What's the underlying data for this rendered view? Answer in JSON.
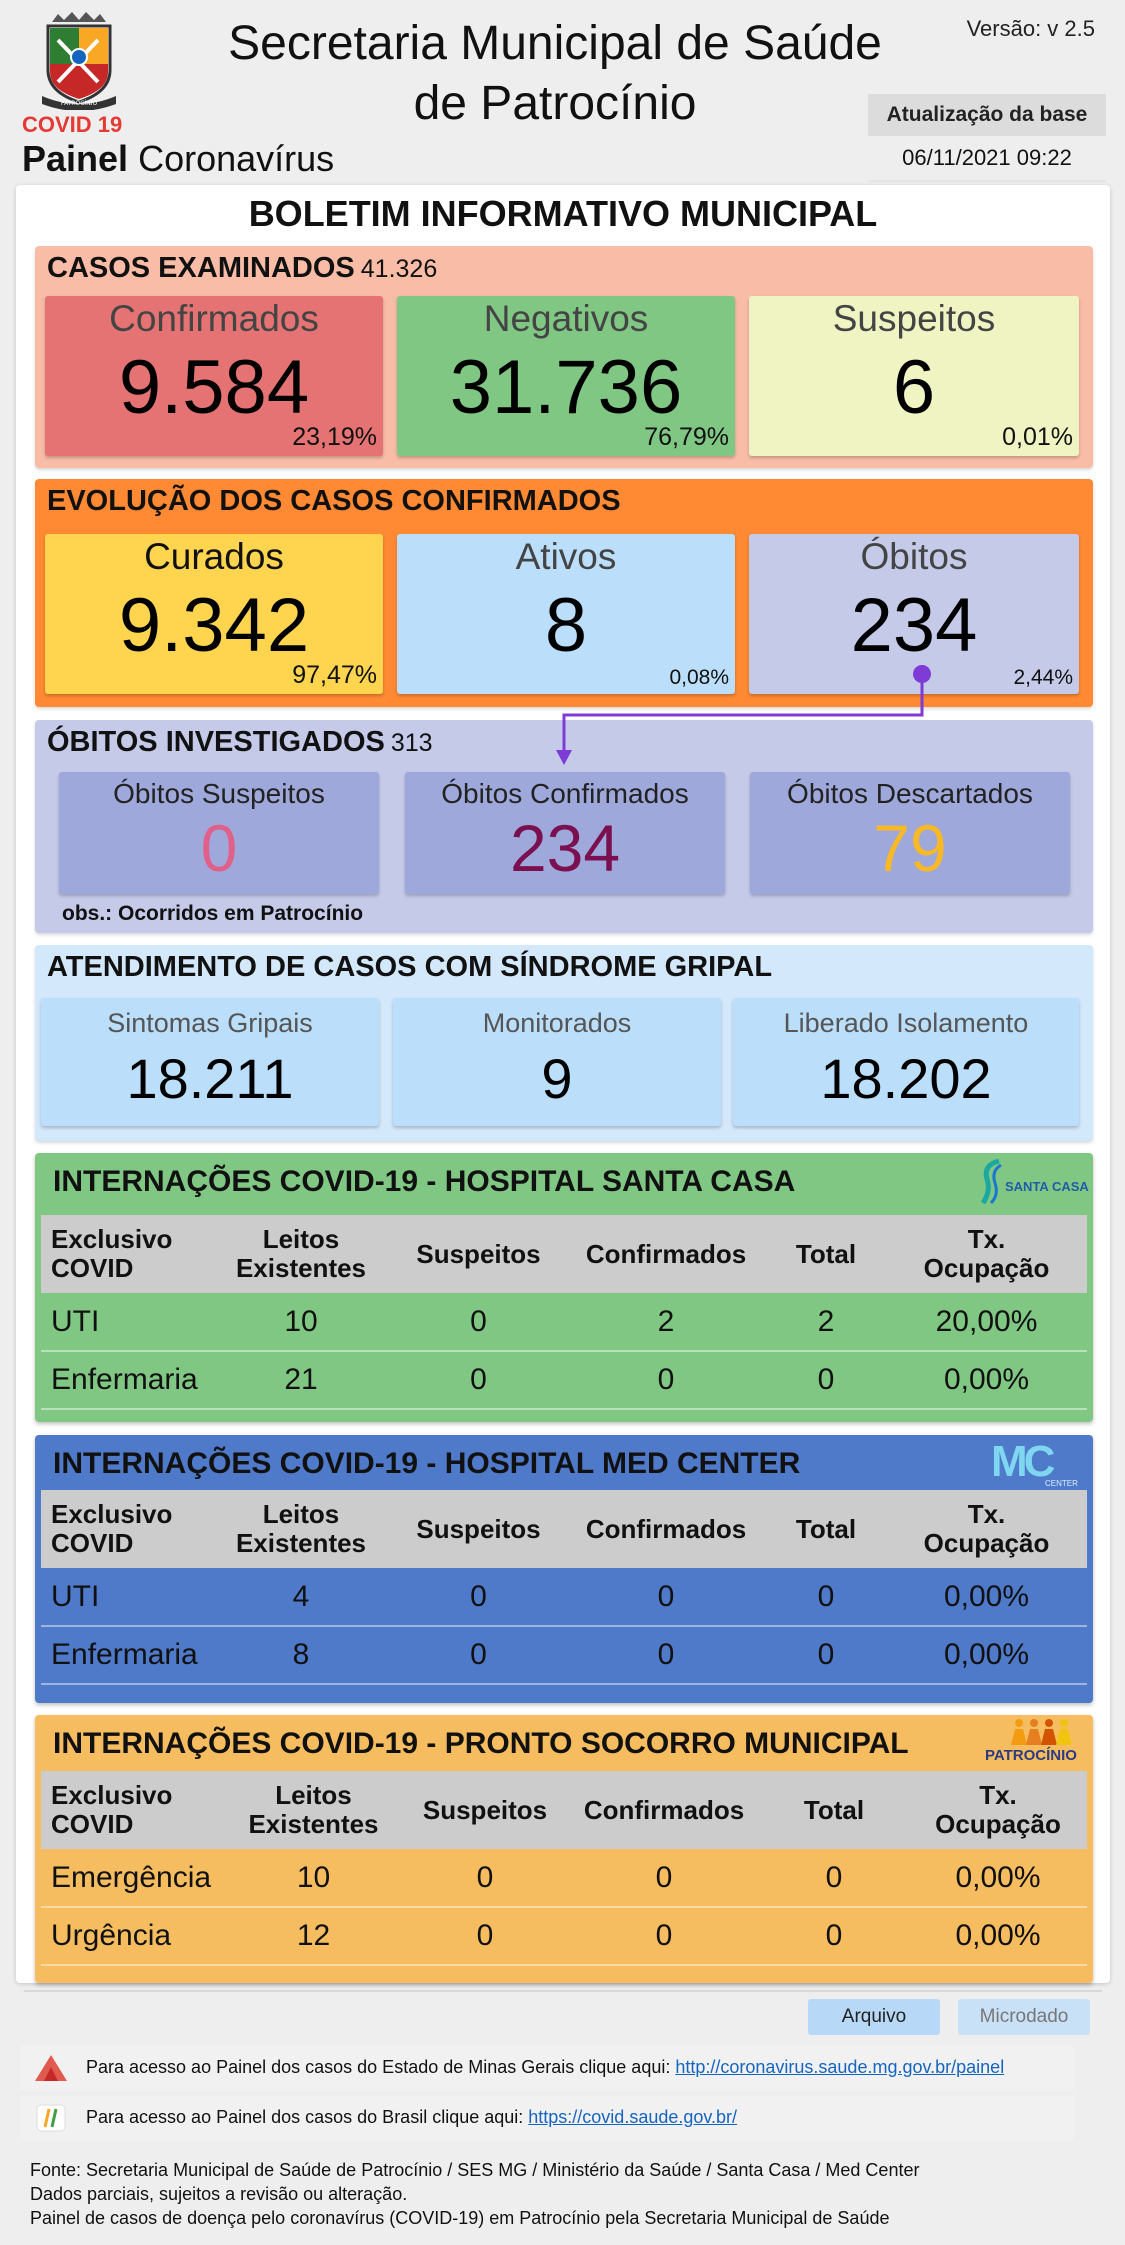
{
  "header": {
    "logo_text": "PATROCÍNIO",
    "covid_label": "COVID 19",
    "painel_bold": "Painel",
    "painel_rest": " Coronavírus",
    "title_line1": "Secretaria Municipal de Saúde",
    "title_line2": "de Patrocínio",
    "version": "Versão: v 2.5",
    "update_label": "Atualização da base",
    "update_date": "06/11/2021 09:22"
  },
  "bulletin_title": "BOLETIM INFORMATIVO MUNICIPAL",
  "casos_examinados": {
    "title": "CASOS EXAMINADOS",
    "total": "41.326",
    "confirmados": {
      "label": "Confirmados",
      "value": "9.584",
      "pct": "23,19%"
    },
    "negativos": {
      "label": "Negativos",
      "value": "31.736",
      "pct": "76,79%"
    },
    "suspeitos": {
      "label": "Suspeitos",
      "value": "6",
      "pct": "0,01%"
    }
  },
  "evolucao": {
    "title": "EVOLUÇÃO DOS CASOS CONFIRMADOS",
    "curados": {
      "label": "Curados",
      "value": "9.342",
      "pct": "97,47%"
    },
    "ativos": {
      "label": "Ativos",
      "value": "8",
      "pct": "0,08%"
    },
    "obitos": {
      "label": "Óbitos",
      "value": "234",
      "pct": "2,44%"
    }
  },
  "obitos_investigados": {
    "title": "ÓBITOS INVESTIGADOS",
    "total": "313",
    "suspeitos": {
      "label": "Óbitos Suspeitos",
      "value": "0"
    },
    "confirmados": {
      "label": "Óbitos Confirmados",
      "value": "234"
    },
    "descartados": {
      "label": "Óbitos Descartados",
      "value": "79"
    },
    "obs": "obs.: Ocorridos em Patrocínio"
  },
  "sindrome_gripal": {
    "title": "ATENDIMENTO DE CASOS COM SÍNDROME GRIPAL",
    "sintomas": {
      "label": "Sintomas Gripais",
      "value": "18.211"
    },
    "monitorados": {
      "label": "Monitorados",
      "value": "9"
    },
    "liberado": {
      "label": "Liberado Isolamento",
      "value": "18.202"
    }
  },
  "table_headers": {
    "c1a": "Exclusivo",
    "c1b": "COVID",
    "c2a": "Leitos",
    "c2b": "Existentes",
    "c3": "Suspeitos",
    "c4": "Confirmados",
    "c5": "Total",
    "c6a": "Tx.",
    "c6b": "Ocupação"
  },
  "santa_casa": {
    "title": "INTERNAÇÕES COVID-19 - HOSPITAL SANTA CASA",
    "logo_text": "SANTA CASA",
    "rows": [
      {
        "tipo": "UTI",
        "leitos": "10",
        "suspeitos": "0",
        "confirmados": "2",
        "total": "2",
        "taxa": "20,00%"
      },
      {
        "tipo": "Enfermaria",
        "leitos": "21",
        "suspeitos": "0",
        "confirmados": "0",
        "total": "0",
        "taxa": "0,00%"
      }
    ]
  },
  "med_center": {
    "title": "INTERNAÇÕES COVID-19 - HOSPITAL MED CENTER",
    "logo_text": "MC",
    "logo_sub": "CENTER",
    "rows": [
      {
        "tipo": "UTI",
        "leitos": "4",
        "suspeitos": "0",
        "confirmados": "0",
        "total": "0",
        "taxa": "0,00%"
      },
      {
        "tipo": "Enfermaria",
        "leitos": "8",
        "suspeitos": "0",
        "confirmados": "0",
        "total": "0",
        "taxa": "0,00%"
      }
    ]
  },
  "pronto_socorro": {
    "title": "INTERNAÇÕES COVID-19 - PRONTO SOCORRO MUNICIPAL",
    "logo_text": "PATROCÍNIO",
    "rows": [
      {
        "tipo": "Emergência",
        "leitos": "10",
        "suspeitos": "0",
        "confirmados": "0",
        "total": "0",
        "taxa": "0,00%"
      },
      {
        "tipo": "Urgência",
        "leitos": "12",
        "suspeitos": "0",
        "confirmados": "0",
        "total": "0",
        "taxa": "0,00%"
      }
    ]
  },
  "buttons": {
    "arquivo": "Arquivo",
    "microdado": "Microdado"
  },
  "links": {
    "mg_text": "Para acesso ao Painel dos casos do Estado de Minas Gerais clique aqui: ",
    "mg_url": "http://coronavirus.saude.mg.gov.br/painel",
    "br_text": "Para acesso ao Painel dos casos do Brasil clique aqui: ",
    "br_url": "https://covid.saude.gov.br/"
  },
  "footer": {
    "line1": "Fonte: Secretaria Municipal de Saúde de Patrocínio / SES MG / Ministério da Saúde / Santa Casa / Med Center",
    "line2": "Dados parciais, sujeitos a revisão ou alteração.",
    "line3": "Painel de casos de doença pelo coronavírus (COVID-19) em Patrocínio pela Secretaria Municipal de Saúde"
  },
  "colors": {
    "confirmados": "#e57373",
    "negativos": "#81c784",
    "suspeitos": "#f0f4c3",
    "curados": "#ffd54f",
    "ativos": "#bbdefb",
    "obitos": "#c5cae9",
    "santa_casa": "#81c784",
    "med_center": "#4f79c9",
    "pronto_socorro": "#f6bd60"
  }
}
